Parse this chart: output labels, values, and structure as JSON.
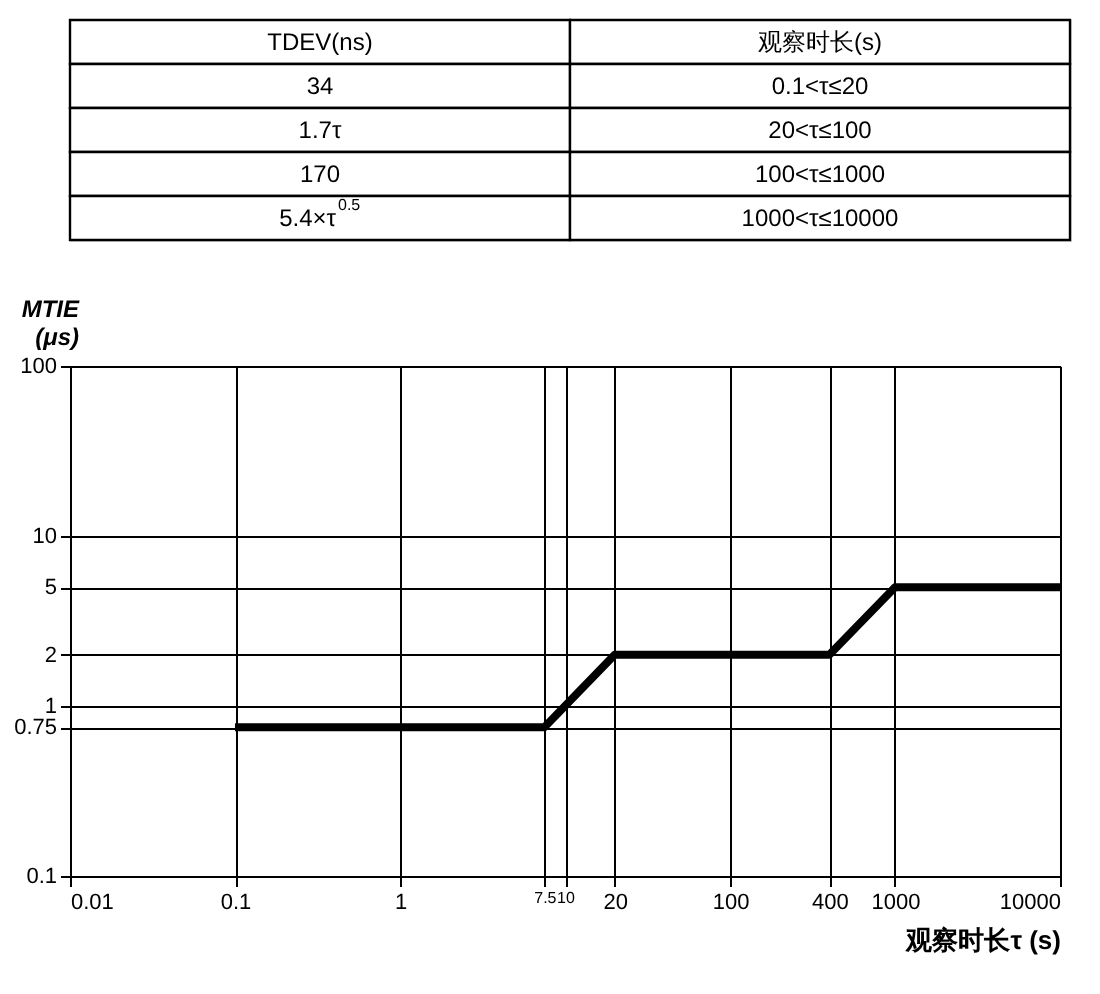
{
  "chart_data": [
    {
      "type": "other",
      "categories": [
        "TDEV(ns)",
        "观察时长(s)"
      ],
      "annotations": [
        "34",
        "0.1<τ≤20",
        "1.7τ",
        "20<τ≤100",
        "170",
        "100<τ≤1000",
        "5.4×τ$^{0.5}$",
        "1000<τ≤10000"
      ]
    },
    {
      "type": "line",
      "xlabel": "观察时长τ (s)",
      "ylabel": "MTIE\n(μs)",
      "log": "xy",
      "grid": true,
      "marker": "none",
      "line_style": "solid",
      "x": [
        0.1,
        7.5,
        20,
        400,
        1000,
        10000
      ],
      "series": [
        {
          "color": "#000000",
          "values": [
            0.75,
            0.75,
            2,
            2,
            5,
            5
          ]
        }
      ],
      "xlim": [
        0.01,
        10000
      ],
      "ylim": [
        0.1,
        100
      ],
      "xticks": [
        0.01,
        0.1,
        1,
        7.5,
        10,
        20,
        100,
        400,
        1000,
        10000
      ],
      "yticks": [
        0.1,
        0.75,
        1,
        2,
        5,
        10,
        100
      ]
    }
  ]
}
